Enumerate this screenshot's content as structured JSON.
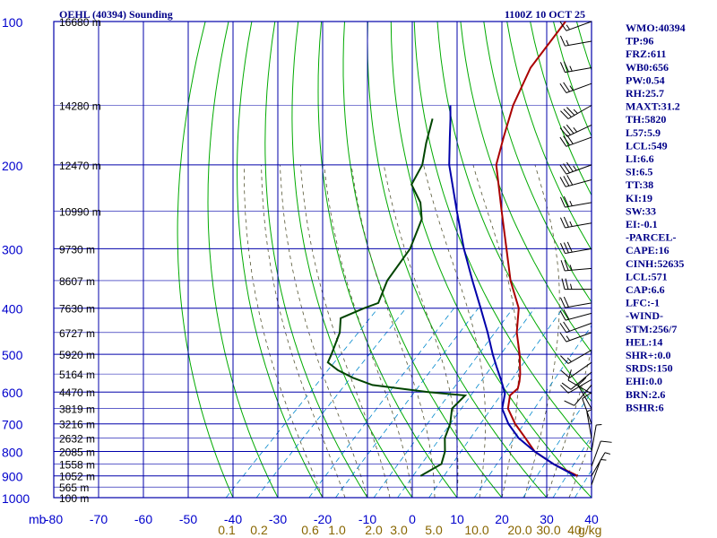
{
  "chart_data": {
    "type": "skew-t log-p sounding",
    "title": "OEHL (40394) Sounding",
    "valid_time": "1100Z 10 OCT 25",
    "p_label": "mb",
    "t_unit": "C",
    "mixing_unit": "g/kg",
    "p_range": [
      1000,
      100
    ],
    "t_range": [
      -80,
      40
    ],
    "pressure_ticks": [
      {
        "p": 100,
        "label": "100"
      },
      {
        "p": 200,
        "label": "200"
      },
      {
        "p": 300,
        "label": "300"
      },
      {
        "p": 400,
        "label": "400"
      },
      {
        "p": 500,
        "label": "500"
      },
      {
        "p": 600,
        "label": "600"
      },
      {
        "p": 700,
        "label": "700"
      },
      {
        "p": 800,
        "label": "800"
      },
      {
        "p": 900,
        "label": "900"
      },
      {
        "p": 1000,
        "label": "1000"
      }
    ],
    "temperature_ticks": [
      {
        "t": -80,
        "label": "-80"
      },
      {
        "t": -70,
        "label": "-70"
      },
      {
        "t": -60,
        "label": "-60"
      },
      {
        "t": -50,
        "label": "-50"
      },
      {
        "t": -40,
        "label": "-40"
      },
      {
        "t": -30,
        "label": "-30"
      },
      {
        "t": -20,
        "label": "-20"
      },
      {
        "t": -10,
        "label": "-10"
      },
      {
        "t": 0,
        "label": "0"
      },
      {
        "t": 10,
        "label": "10"
      },
      {
        "t": 20,
        "label": "20"
      },
      {
        "t": 30,
        "label": "30"
      },
      {
        "t": 40,
        "label": "40"
      }
    ],
    "height_labels": [
      {
        "p": 100,
        "label": "16680 m"
      },
      {
        "p": 150,
        "label": "14280 m"
      },
      {
        "p": 200,
        "label": "12470 m"
      },
      {
        "p": 250,
        "label": "10990 m"
      },
      {
        "p": 300,
        "label": "9730 m"
      },
      {
        "p": 350,
        "label": "8607 m"
      },
      {
        "p": 400,
        "label": "7630 m"
      },
      {
        "p": 450,
        "label": "6727 m"
      },
      {
        "p": 500,
        "label": "5920 m"
      },
      {
        "p": 550,
        "label": "5164 m"
      },
      {
        "p": 600,
        "label": "4470 m"
      },
      {
        "p": 650,
        "label": "3819 m"
      },
      {
        "p": 700,
        "label": "3216 m"
      },
      {
        "p": 750,
        "label": "2632 m"
      },
      {
        "p": 800,
        "label": "2085 m"
      },
      {
        "p": 850,
        "label": "1558 m"
      },
      {
        "p": 900,
        "label": "1052 m"
      },
      {
        "p": 950,
        "label": "565 m"
      },
      {
        "p": 1000,
        "label": "100 m"
      }
    ],
    "mixing_ratio_lines": [
      0.1,
      0.2,
      0.6,
      1.0,
      2.0,
      3.0,
      5.0,
      10.0,
      20.0,
      30.0,
      40.0
    ],
    "mixing_ratio_labels": [
      "0.1",
      "0.2",
      "0.6",
      "1.0",
      "2.0",
      "3.0",
      "5.0",
      "10.0",
      "20.0",
      "30.0",
      "40"
    ],
    "series": [
      {
        "name": "temperature",
        "color": "#aa0000",
        "points": [
          [
            900,
            32.0
          ],
          [
            850,
            24.0
          ],
          [
            800,
            17.0
          ],
          [
            750,
            12.0
          ],
          [
            700,
            6.5
          ],
          [
            650,
            1.5
          ],
          [
            610,
            -1.0
          ],
          [
            590,
            -0.8
          ],
          [
            570,
            -2.0
          ],
          [
            550,
            -3.5
          ],
          [
            500,
            -8.0
          ],
          [
            450,
            -13.5
          ],
          [
            400,
            -18.5
          ],
          [
            350,
            -26.5
          ],
          [
            300,
            -34.5
          ],
          [
            250,
            -44.0
          ],
          [
            200,
            -55.5
          ],
          [
            175,
            -60.0
          ],
          [
            150,
            -65.0
          ],
          [
            125,
            -69.5
          ],
          [
            100,
            -72.0
          ]
        ]
      },
      {
        "name": "parcel",
        "color": "#0000aa",
        "points": [
          [
            900,
            31.5
          ],
          [
            850,
            24.0
          ],
          [
            800,
            17.0
          ],
          [
            750,
            10.5
          ],
          [
            700,
            5.0
          ],
          [
            650,
            0.2
          ],
          [
            605,
            -2.5
          ],
          [
            570,
            -6.0
          ],
          [
            530,
            -10.5
          ],
          [
            500,
            -14.0
          ],
          [
            450,
            -20.0
          ],
          [
            400,
            -27.0
          ],
          [
            350,
            -35.0
          ],
          [
            300,
            -44.0
          ],
          [
            250,
            -54.0
          ],
          [
            200,
            -66.0
          ],
          [
            175,
            -72.0
          ],
          [
            160,
            -76.0
          ],
          [
            150,
            -79.0
          ]
        ]
      },
      {
        "name": "dewpoint",
        "color": "#004400",
        "points": [
          [
            900,
            -3.0
          ],
          [
            850,
            -1.0
          ],
          [
            800,
            -3.0
          ],
          [
            750,
            -6.0
          ],
          [
            700,
            -8.0
          ],
          [
            650,
            -11.0
          ],
          [
            610,
            -11.0
          ],
          [
            600,
            -20.0
          ],
          [
            580,
            -34.0
          ],
          [
            560,
            -40.0
          ],
          [
            540,
            -45.0
          ],
          [
            520,
            -49.0
          ],
          [
            500,
            -50.0
          ],
          [
            450,
            -53.0
          ],
          [
            420,
            -56.0
          ],
          [
            400,
            -53.0
          ],
          [
            390,
            -51.0
          ],
          [
            350,
            -54.0
          ],
          [
            300,
            -56.0
          ],
          [
            260,
            -60.0
          ],
          [
            240,
            -64.0
          ],
          [
            220,
            -70.0
          ],
          [
            200,
            -72.0
          ],
          [
            180,
            -76.0
          ],
          [
            160,
            -80.0
          ]
        ]
      }
    ],
    "wind_barbs": [
      {
        "p": 100,
        "dir": 250,
        "kt": 15
      },
      {
        "p": 110,
        "dir": 260,
        "kt": 15
      },
      {
        "p": 125,
        "dir": 260,
        "kt": 25
      },
      {
        "p": 135,
        "dir": 250,
        "kt": 25
      },
      {
        "p": 150,
        "dir": 240,
        "kt": 35
      },
      {
        "p": 165,
        "dir": 245,
        "kt": 35
      },
      {
        "p": 175,
        "dir": 250,
        "kt": 30
      },
      {
        "p": 200,
        "dir": 250,
        "kt": 35
      },
      {
        "p": 215,
        "dir": 255,
        "kt": 30
      },
      {
        "p": 240,
        "dir": 260,
        "kt": 25
      },
      {
        "p": 265,
        "dir": 260,
        "kt": 25
      },
      {
        "p": 300,
        "dir": 260,
        "kt": 30
      },
      {
        "p": 330,
        "dir": 265,
        "kt": 25
      },
      {
        "p": 365,
        "dir": 270,
        "kt": 25
      },
      {
        "p": 390,
        "dir": 260,
        "kt": 20
      },
      {
        "p": 410,
        "dir": 255,
        "kt": 20
      },
      {
        "p": 430,
        "dir": 250,
        "kt": 20
      },
      {
        "p": 450,
        "dir": 250,
        "kt": 15
      },
      {
        "p": 490,
        "dir": 240,
        "kt": 15
      },
      {
        "p": 520,
        "dir": 235,
        "kt": 10
      },
      {
        "p": 545,
        "dir": 230,
        "kt": 10
      },
      {
        "p": 565,
        "dir": 240,
        "kt": 10
      },
      {
        "p": 580,
        "dir": 220,
        "kt": 10
      },
      {
        "p": 605,
        "dir": 300,
        "kt": 10
      },
      {
        "p": 650,
        "dir": 330,
        "kt": 10
      },
      {
        "p": 700,
        "dir": 340,
        "kt": 10
      },
      {
        "p": 750,
        "dir": 350,
        "kt": 5
      },
      {
        "p": 800,
        "dir": 10,
        "kt": 5
      },
      {
        "p": 860,
        "dir": 20,
        "kt": 10
      },
      {
        "p": 900,
        "dir": 30,
        "kt": 5
      },
      {
        "p": 940,
        "dir": 20,
        "kt": 5
      }
    ],
    "indices": [
      "WMO:40394",
      "TP:96",
      "FRZ:611",
      "WB0:656",
      "PW:0.54",
      "RH:25.7",
      "MAXT:31.2",
      "TH:5820",
      "L57:5.9",
      "LCL:549",
      "LI:6.6",
      "SI:6.5",
      "TT:38",
      "KI:19",
      "SW:33",
      "EI:-0.1",
      "-PARCEL-",
      "CAPE:16",
      "CINH:52635",
      "LCL:571",
      "CAP:6.6",
      "LFC:-1",
      "-WIND-",
      "STM:256/7",
      "HEL:14",
      "SHR+:0.0",
      "SRDS:150",
      "EHI:0.0",
      "BRN:2.6",
      "BSHR:6"
    ]
  },
  "colors": {
    "grid": "#0000aa",
    "dry_adiabat": "#00aa00",
    "moist_adiabat": "#555533",
    "mixing_ratio": "#0088cc",
    "title": "#000088",
    "axis_label": "#0000cc",
    "height_label": "#000000",
    "mixing_label": "#886600",
    "barb": "#000000"
  }
}
